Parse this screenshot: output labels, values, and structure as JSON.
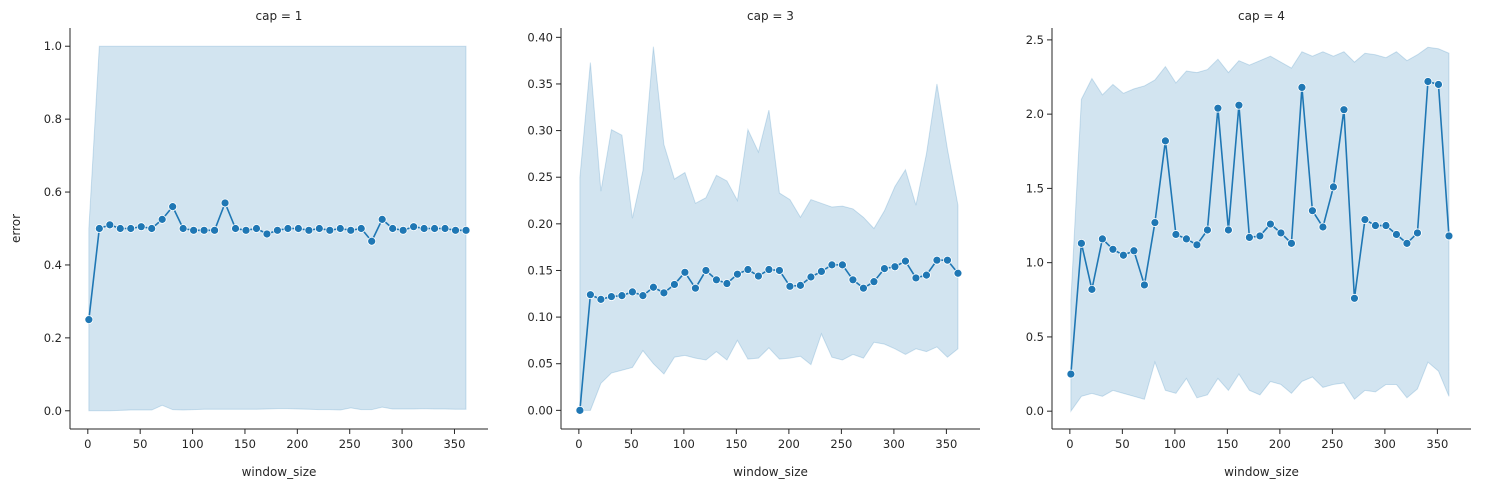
{
  "chart_data": [
    {
      "type": "line",
      "title": "cap = 1",
      "xlabel": "window_size",
      "ylabel": "error",
      "xlim": [
        -17,
        382
      ],
      "ylim": [
        -0.05,
        1.05
      ],
      "xticks": [
        0,
        50,
        100,
        150,
        200,
        250,
        300,
        350
      ],
      "xtick_labels": [
        "0",
        "50",
        "100",
        "150",
        "200",
        "250",
        "300",
        "350"
      ],
      "yticks": [
        0.0,
        0.2,
        0.4,
        0.6,
        0.8,
        1.0
      ],
      "ytick_labels": [
        "0.0",
        "0.2",
        "0.4",
        "0.6",
        "0.8",
        "1.0"
      ],
      "x": [
        1,
        11,
        21,
        31,
        41,
        51,
        61,
        71,
        81,
        91,
        101,
        111,
        121,
        131,
        141,
        151,
        161,
        171,
        181,
        191,
        201,
        211,
        221,
        231,
        241,
        251,
        261,
        271,
        281,
        291,
        301,
        311,
        321,
        331,
        341,
        351,
        361
      ],
      "y": [
        0.25,
        0.5,
        0.51,
        0.5,
        0.5,
        0.505,
        0.5,
        0.525,
        0.56,
        0.5,
        0.495,
        0.495,
        0.495,
        0.57,
        0.5,
        0.495,
        0.5,
        0.485,
        0.495,
        0.5,
        0.5,
        0.495,
        0.5,
        0.495,
        0.5,
        0.495,
        0.5,
        0.465,
        0.525,
        0.5,
        0.495,
        0.505,
        0.5,
        0.5,
        0.5,
        0.495,
        0.495
      ],
      "ci_upper": [
        0.5,
        1.0,
        1.0,
        1.0,
        1.0,
        1.0,
        1.0,
        1.0,
        1.0,
        1.0,
        1.0,
        1.0,
        1.0,
        1.0,
        1.0,
        1.0,
        1.0,
        1.0,
        1.0,
        1.0,
        1.0,
        1.0,
        1.0,
        1.0,
        1.0,
        1.0,
        1.0,
        1.0,
        1.0,
        1.0,
        1.0,
        1.0,
        1.0,
        1.0,
        1.0,
        1.0,
        1.0
      ],
      "ci_lower": [
        0.0,
        0.0,
        0.0,
        0.001,
        0.002,
        0.002,
        0.002,
        0.015,
        0.003,
        0.002,
        0.003,
        0.004,
        0.004,
        0.004,
        0.004,
        0.004,
        0.004,
        0.005,
        0.006,
        0.006,
        0.005,
        0.004,
        0.003,
        0.003,
        0.002,
        0.008,
        0.003,
        0.003,
        0.01,
        0.005,
        0.005,
        0.005,
        0.006,
        0.005,
        0.005,
        0.004,
        0.004
      ],
      "color": "#1f77b4"
    },
    {
      "type": "line",
      "title": "cap = 3",
      "xlabel": "window_size",
      "ylabel": "",
      "xlim": [
        -17,
        382
      ],
      "ylim": [
        -0.02,
        0.41
      ],
      "xticks": [
        0,
        50,
        100,
        150,
        200,
        250,
        300,
        350
      ],
      "xtick_labels": [
        "0",
        "50",
        "100",
        "150",
        "200",
        "250",
        "300",
        "350"
      ],
      "yticks": [
        0.0,
        0.05,
        0.1,
        0.15,
        0.2,
        0.25,
        0.3,
        0.35,
        0.4
      ],
      "ytick_labels": [
        "0.00",
        "0.05",
        "0.10",
        "0.15",
        "0.20",
        "0.25",
        "0.30",
        "0.35",
        "0.40"
      ],
      "x": [
        1,
        11,
        21,
        31,
        41,
        51,
        61,
        71,
        81,
        91,
        101,
        111,
        121,
        131,
        141,
        151,
        161,
        171,
        181,
        191,
        201,
        211,
        221,
        231,
        241,
        251,
        261,
        271,
        281,
        291,
        301,
        311,
        321,
        331,
        341,
        351,
        361
      ],
      "y": [
        0.0,
        0.124,
        0.119,
        0.122,
        0.123,
        0.127,
        0.123,
        0.132,
        0.126,
        0.135,
        0.148,
        0.131,
        0.15,
        0.14,
        0.136,
        0.146,
        0.151,
        0.144,
        0.151,
        0.15,
        0.133,
        0.134,
        0.143,
        0.149,
        0.156,
        0.156,
        0.14,
        0.131,
        0.138,
        0.152,
        0.154,
        0.16,
        0.142,
        0.145,
        0.161,
        0.161,
        0.147
      ],
      "ci_upper": [
        0.25,
        0.373,
        0.235,
        0.301,
        0.295,
        0.206,
        0.257,
        0.39,
        0.285,
        0.248,
        0.255,
        0.222,
        0.228,
        0.252,
        0.246,
        0.225,
        0.301,
        0.277,
        0.322,
        0.233,
        0.226,
        0.207,
        0.226,
        0.222,
        0.218,
        0.219,
        0.216,
        0.207,
        0.195,
        0.214,
        0.24,
        0.258,
        0.22,
        0.275,
        0.35,
        0.28,
        0.22
      ],
      "ci_lower": [
        0.0,
        0.0,
        0.029,
        0.04,
        0.043,
        0.046,
        0.064,
        0.05,
        0.039,
        0.057,
        0.059,
        0.056,
        0.054,
        0.063,
        0.054,
        0.075,
        0.055,
        0.056,
        0.067,
        0.055,
        0.056,
        0.058,
        0.049,
        0.082,
        0.057,
        0.054,
        0.06,
        0.056,
        0.073,
        0.071,
        0.066,
        0.06,
        0.066,
        0.063,
        0.068,
        0.057,
        0.066
      ],
      "color": "#1f77b4"
    },
    {
      "type": "line",
      "title": "cap = 4",
      "xlabel": "window_size",
      "ylabel": "",
      "xlim": [
        -17,
        382
      ],
      "ylim": [
        -0.12,
        2.58
      ],
      "xticks": [
        0,
        50,
        100,
        150,
        200,
        250,
        300,
        350
      ],
      "xtick_labels": [
        "0",
        "50",
        "100",
        "150",
        "200",
        "250",
        "300",
        "350"
      ],
      "yticks": [
        0.0,
        0.5,
        1.0,
        1.5,
        2.0,
        2.5
      ],
      "ytick_labels": [
        "0.0",
        "0.5",
        "1.0",
        "1.5",
        "2.0",
        "2.5"
      ],
      "x": [
        1,
        11,
        21,
        31,
        41,
        51,
        61,
        71,
        81,
        91,
        101,
        111,
        121,
        131,
        141,
        151,
        161,
        171,
        181,
        191,
        201,
        211,
        221,
        231,
        241,
        251,
        261,
        271,
        281,
        291,
        301,
        311,
        321,
        331,
        341,
        351,
        361
      ],
      "y": [
        0.25,
        1.13,
        0.82,
        1.16,
        1.09,
        1.05,
        1.08,
        0.85,
        1.27,
        1.82,
        1.19,
        1.16,
        1.12,
        1.22,
        2.04,
        1.22,
        2.06,
        1.17,
        1.18,
        1.26,
        1.2,
        1.13,
        2.18,
        1.35,
        1.24,
        1.51,
        2.03,
        0.76,
        1.29,
        1.25,
        1.25,
        1.19,
        1.13,
        1.2,
        2.22,
        2.2,
        1.18
      ],
      "ci_upper": [
        0.75,
        2.1,
        2.24,
        2.13,
        2.2,
        2.14,
        2.17,
        2.19,
        2.23,
        2.32,
        2.21,
        2.29,
        2.28,
        2.3,
        2.37,
        2.28,
        2.36,
        2.33,
        2.36,
        2.39,
        2.35,
        2.31,
        2.42,
        2.39,
        2.42,
        2.39,
        2.42,
        2.35,
        2.41,
        2.4,
        2.38,
        2.42,
        2.36,
        2.4,
        2.45,
        2.44,
        2.41
      ],
      "ci_lower": [
        0.0,
        0.1,
        0.12,
        0.1,
        0.14,
        0.12,
        0.1,
        0.08,
        0.33,
        0.14,
        0.12,
        0.22,
        0.09,
        0.11,
        0.22,
        0.14,
        0.25,
        0.14,
        0.11,
        0.2,
        0.18,
        0.12,
        0.2,
        0.23,
        0.16,
        0.18,
        0.19,
        0.08,
        0.14,
        0.13,
        0.18,
        0.18,
        0.09,
        0.15,
        0.33,
        0.27,
        0.1
      ],
      "color": "#1f77b4"
    }
  ]
}
